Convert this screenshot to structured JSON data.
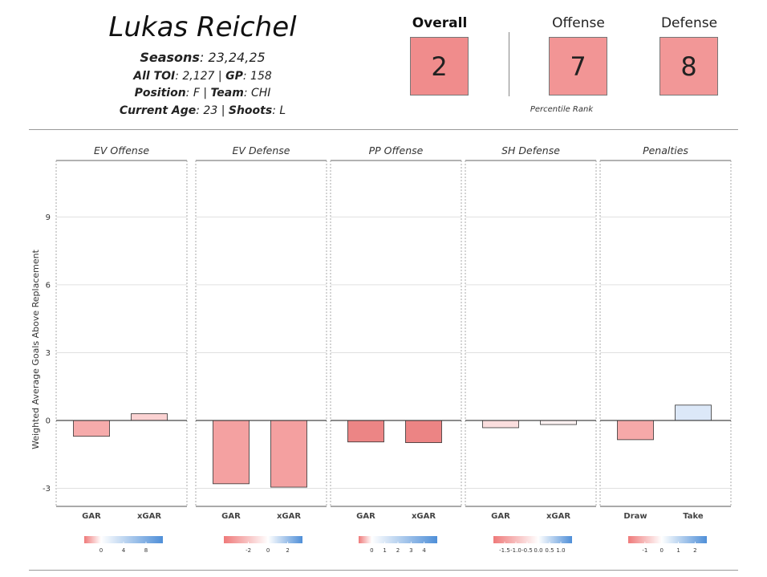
{
  "player": {
    "name": "Lukas Reichel",
    "seasons_label": "Seasons",
    "seasons": "23,24,25",
    "toi_label": "All TOI",
    "toi": "2,127",
    "gp_label": "GP",
    "gp": "158",
    "position_label": "Position",
    "position": "F",
    "team_label": "Team",
    "team": "CHI",
    "age_label": "Current Age",
    "age": "23",
    "shoots_label": "Shoots",
    "shoots": "L"
  },
  "ranks": {
    "overall_label": "Overall",
    "overall": "2",
    "overall_color": "#f08c8c",
    "offense_label": "Offense",
    "offense": "7",
    "offense_color": "#f29595",
    "defense_label": "Defense",
    "defense": "8",
    "defense_color": "#f29797",
    "percentile_label": "Percentile Rank"
  },
  "chart_data": {
    "type": "bar",
    "ylabel": "Weighted Average Goals Above Replacement",
    "ylim": [
      -3.8,
      11.5
    ],
    "yticks": [
      -3,
      0,
      3,
      6,
      9
    ],
    "grid": true,
    "panels": [
      {
        "title": "EV Offense",
        "categories": [
          "GAR",
          "xGAR"
        ],
        "values": [
          -0.7,
          0.3
        ],
        "colors": [
          "#f6abab",
          "#fbd2d2"
        ],
        "legend": {
          "ticks": [
            "0",
            "4",
            "8"
          ],
          "tick_values": [
            0,
            4,
            8
          ],
          "min": -3,
          "max": 11
        }
      },
      {
        "title": "EV Defense",
        "categories": [
          "GAR",
          "xGAR"
        ],
        "values": [
          -2.8,
          -2.95
        ],
        "colors": [
          "#f4a1a1",
          "#f4a0a0"
        ],
        "legend": {
          "ticks": [
            "-2",
            "0",
            "2"
          ],
          "tick_values": [
            -2,
            0,
            2
          ],
          "min": -4.5,
          "max": 3.5
        }
      },
      {
        "title": "PP Offense",
        "categories": [
          "GAR",
          "xGAR"
        ],
        "values": [
          -0.95,
          -0.98
        ],
        "colors": [
          "#ec8585",
          "#ec8484"
        ],
        "legend": {
          "ticks": [
            "0",
            "1",
            "2",
            "3",
            "4"
          ],
          "tick_values": [
            0,
            1,
            2,
            3,
            4
          ],
          "min": -1,
          "max": 5
        }
      },
      {
        "title": "SH Defense",
        "categories": [
          "GAR",
          "xGAR"
        ],
        "values": [
          -0.32,
          -0.18
        ],
        "colors": [
          "#fbdede",
          "#fdf1f1"
        ],
        "legend": {
          "ticks": [
            "-1.5",
            "-1.0",
            "-0.5",
            "0.0",
            "0.5",
            "1.0"
          ],
          "tick_values": [
            -1.5,
            -1.0,
            -0.5,
            0.0,
            0.5,
            1.0
          ],
          "min": -2,
          "max": 1.5
        }
      },
      {
        "title": "Penalties",
        "categories": [
          "Draw",
          "Take"
        ],
        "values": [
          -0.85,
          0.68
        ],
        "colors": [
          "#f6a9a9",
          "#dce8f8"
        ],
        "legend": {
          "ticks": [
            "-1",
            "0",
            "1",
            "2"
          ],
          "tick_values": [
            -1,
            0,
            1,
            2
          ],
          "min": -2,
          "max": 2.7
        }
      }
    ]
  }
}
